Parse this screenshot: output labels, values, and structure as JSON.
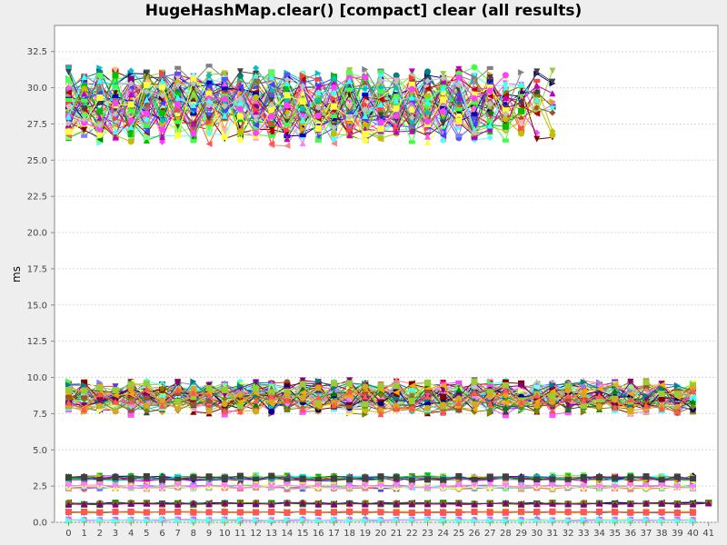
{
  "chart_data": {
    "type": "line",
    "title": "HugeHashMap.clear() [compact] clear (all results)",
    "xlabel": "",
    "ylabel": "ms",
    "x": [
      0,
      1,
      2,
      3,
      4,
      5,
      6,
      7,
      8,
      9,
      10,
      11,
      12,
      13,
      14,
      15,
      16,
      17,
      18,
      19,
      20,
      21,
      22,
      23,
      24,
      25,
      26,
      27,
      28,
      29,
      30,
      31,
      32,
      33,
      34,
      35,
      36,
      37,
      38,
      39,
      40,
      41
    ],
    "x_tick_labels": [
      "0",
      "1",
      "2",
      "3",
      "4",
      "5",
      "6",
      "7",
      "8",
      "9",
      "10",
      "11",
      "12",
      "13",
      "14",
      "15",
      "16",
      "17",
      "18",
      "19",
      "20",
      "21",
      "22",
      "23",
      "24",
      "25",
      "26",
      "27",
      "28",
      "29",
      "30",
      "31",
      "32",
      "33",
      "34",
      "35",
      "36",
      "37",
      "38",
      "39",
      "40",
      "41"
    ],
    "y_tick_labels": [
      "0.0",
      "2.5",
      "5.0",
      "7.5",
      "10.0",
      "12.5",
      "15.0",
      "17.5",
      "20.0",
      "22.5",
      "25.0",
      "27.5",
      "30.0",
      "32.5"
    ],
    "ylim": [
      0,
      34.3
    ],
    "xlim": [
      -0.9,
      41.6
    ],
    "grid": true,
    "legend": "none",
    "groups": [
      {
        "count": 60,
        "x_end_range": [
          25,
          31
        ],
        "y_center": 28.8,
        "y_spread": 2.6,
        "y_min": 24.5,
        "y_max": 33.0
      },
      {
        "count": 55,
        "x_end": 40,
        "y_center": 8.6,
        "y_spread": 1.1,
        "y_min": 6.6,
        "y_max": 10.6
      },
      {
        "count": 14,
        "x_end": 40,
        "y_center": 3.05,
        "y_spread": 0.2
      },
      {
        "count": 12,
        "x_end": 40,
        "y_center": 2.45,
        "y_spread": 0.15
      },
      {
        "count": 6,
        "x_end": 41,
        "y_center": 1.3,
        "y_spread": 0.08
      },
      {
        "count": 6,
        "x_end": 40,
        "y_center": 0.7,
        "y_spread": 0.06
      },
      {
        "count": 5,
        "x_end": 40,
        "y_center": 0.15,
        "y_spread": 0.05
      }
    ],
    "palette": [
      "#ff5555",
      "#5555ff",
      "#55ff55",
      "#ffff55",
      "#ff55ff",
      "#55ffff",
      "#ffafaf",
      "#808080",
      "#c00000",
      "#0000c0",
      "#00c000",
      "#c0c000",
      "#c000c0",
      "#00c0c0",
      "#404040",
      "#ff4040",
      "#4040ff",
      "#40ff40",
      "#ffff40",
      "#ff40ff",
      "#40ffff",
      "#c0c0c0",
      "#ff8080",
      "#8080ff",
      "#80ff80",
      "#ffff80",
      "#ff80ff",
      "#80ffff",
      "#800000",
      "#000080",
      "#008000",
      "#808000",
      "#800080",
      "#008080",
      "#ffa500",
      "#a0522d",
      "#9acd32",
      "#daa520"
    ]
  }
}
